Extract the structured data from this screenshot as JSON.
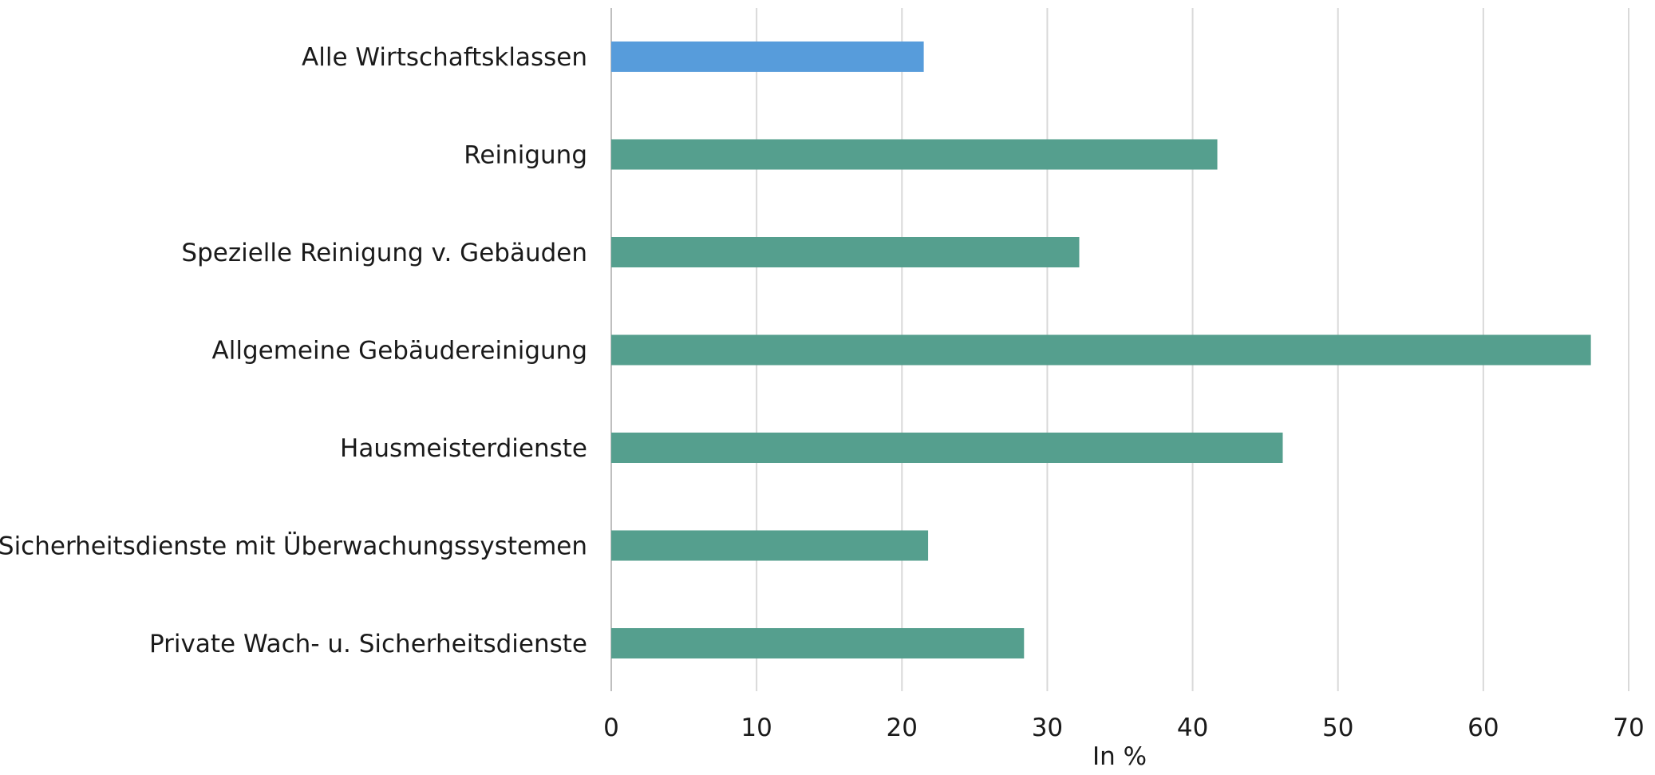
{
  "chart_data": {
    "type": "bar",
    "orientation": "horizontal",
    "title": "",
    "xlabel": "In %",
    "ylabel": "",
    "xlim": [
      0,
      70
    ],
    "x_ticks": [
      0,
      10,
      20,
      30,
      40,
      50,
      60,
      70
    ],
    "grid": "vertical",
    "legend": "none",
    "categories": [
      "Alle Wirtschaftsklassen",
      "Reinigung",
      "Spezielle Reinigung v. Gebäuden",
      "Allgemeine Gebäudereinigung",
      "Hausmeisterdienste",
      "Sicherheitsdienste mit Überwachungssystemen",
      "Private Wach- u. Sicherheitsdienste"
    ],
    "values": [
      21.5,
      41.7,
      32.2,
      67.4,
      46.2,
      21.8,
      28.4
    ],
    "colors": [
      "#579CDB",
      "#559F8E",
      "#559F8E",
      "#559F8E",
      "#559F8E",
      "#559F8E",
      "#559F8E"
    ],
    "grid_color": "#D9D9D9",
    "axis_color": "#BFBFBF"
  }
}
